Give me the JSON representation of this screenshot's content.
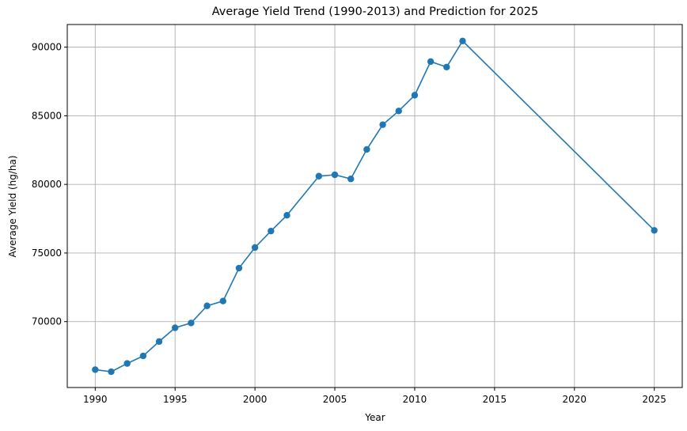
{
  "chart_data": {
    "type": "line",
    "title": "Average Yield Trend (1990-2013) and Prediction for 2025",
    "xlabel": "Year",
    "ylabel": "Average Yield (hg/ha)",
    "xlim": [
      1988.25,
      2026.75
    ],
    "ylim": [
      65200,
      91650
    ],
    "xticks": [
      1990,
      1995,
      2000,
      2005,
      2010,
      2015,
      2020,
      2025
    ],
    "yticks": [
      70000,
      75000,
      80000,
      85000,
      90000
    ],
    "grid": true,
    "marker": "circle",
    "color": "#1f77b4",
    "x": [
      1990,
      1991,
      1992,
      1993,
      1994,
      1995,
      1996,
      1997,
      1998,
      1999,
      2000,
      2001,
      2002,
      2004,
      2005,
      2006,
      2007,
      2008,
      2009,
      2010,
      2011,
      2012,
      2013,
      2025
    ],
    "y": [
      66500,
      66350,
      66950,
      67500,
      68550,
      69550,
      69900,
      71150,
      71500,
      73900,
      75400,
      76600,
      77750,
      80600,
      80700,
      80400,
      82550,
      84350,
      85350,
      86500,
      88950,
      88550,
      90450,
      76650
    ]
  }
}
